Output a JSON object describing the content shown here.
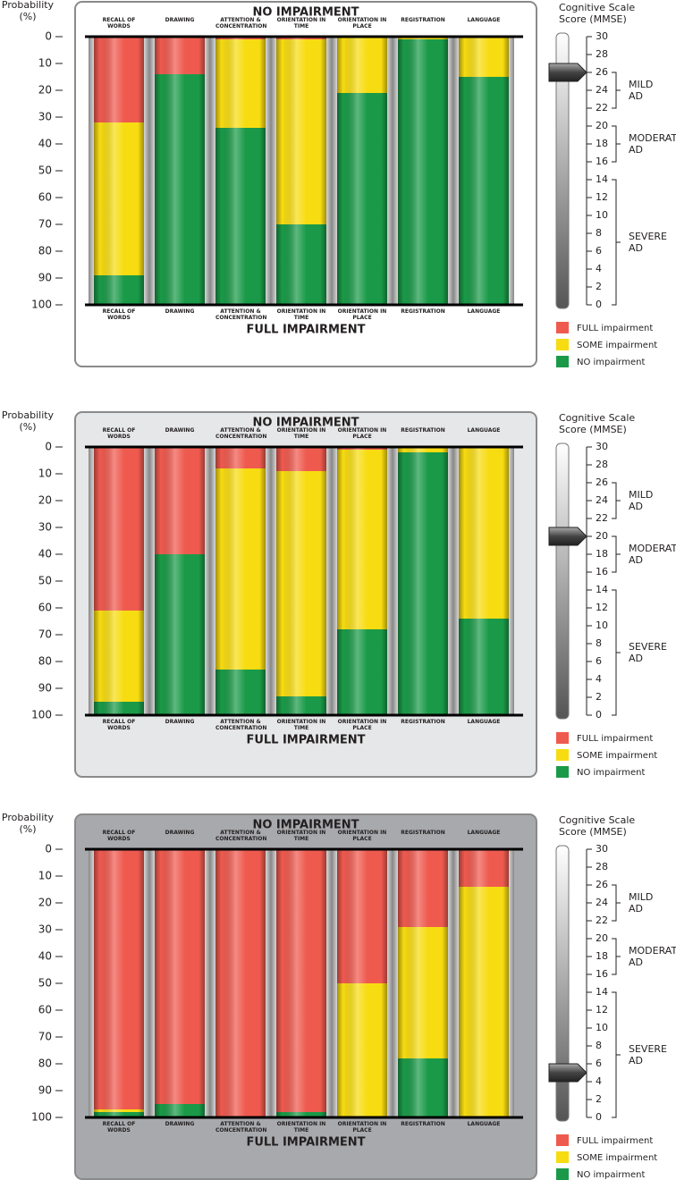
{
  "chart_data": [
    {
      "type": "bar",
      "stacked": true,
      "title": "NO IMPAIRMENT",
      "xlabel": "FULL IMPAIRMENT",
      "ylabel": "Probability (%)",
      "background": "#ffffff",
      "categories": [
        "RECALL OF WORDS",
        "DRAWING",
        "ATTENTION & CONCENTRATION",
        "ORIENTATION IN TIME",
        "ORIENTATION IN PLACE",
        "REGISTRATION",
        "LANGUAGE"
      ],
      "series": [
        {
          "name": "FULL impairment",
          "color": "#ef5a4f",
          "values": [
            32,
            14,
            1,
            1,
            0,
            0,
            0
          ]
        },
        {
          "name": "SOME impairment",
          "color": "#f7dc11",
          "values": [
            57,
            0,
            33,
            69,
            21,
            1,
            15
          ]
        },
        {
          "name": "NO impairment",
          "color": "#1a9a48",
          "values": [
            11,
            86,
            66,
            30,
            79,
            99,
            85
          ]
        }
      ],
      "ylim": [
        0,
        100
      ],
      "y_reversed": true,
      "yticks": [
        0,
        10,
        20,
        30,
        40,
        50,
        60,
        70,
        80,
        90,
        100
      ],
      "mmse": {
        "title": "Cognitive Scale Score (MMSE)",
        "score": 26,
        "lim": [
          0,
          30
        ],
        "ticks": [
          0,
          2,
          4,
          6,
          8,
          10,
          12,
          14,
          16,
          18,
          20,
          22,
          24,
          26,
          28,
          30
        ],
        "ranges": [
          {
            "label": "MILD AD",
            "from": 22,
            "to": 26
          },
          {
            "label": "MODERATE AD",
            "from": 16,
            "to": 20
          },
          {
            "label": "SEVERE AD",
            "from": 0,
            "to": 14
          }
        ]
      }
    },
    {
      "type": "bar",
      "stacked": true,
      "title": "NO IMPAIRMENT",
      "xlabel": "FULL IMPAIRMENT",
      "ylabel": "Probability (%)",
      "background": "#e6e7e8",
      "categories": [
        "RECALL OF WORDS",
        "DRAWING",
        "ATTENTION & CONCENTRATION",
        "ORIENTATION IN TIME",
        "ORIENTATION IN PLACE",
        "REGISTRATION",
        "LANGUAGE"
      ],
      "series": [
        {
          "name": "FULL impairment",
          "color": "#ef5a4f",
          "values": [
            61,
            40,
            8,
            9,
            1,
            0,
            0
          ]
        },
        {
          "name": "SOME impairment",
          "color": "#f7dc11",
          "values": [
            34,
            0,
            75,
            84,
            67,
            2,
            64
          ]
        },
        {
          "name": "NO impairment",
          "color": "#1a9a48",
          "values": [
            5,
            60,
            17,
            7,
            32,
            98,
            36
          ]
        }
      ],
      "ylim": [
        0,
        100
      ],
      "y_reversed": true,
      "yticks": [
        0,
        10,
        20,
        30,
        40,
        50,
        60,
        70,
        80,
        90,
        100
      ],
      "mmse": {
        "title": "Cognitive Scale Score (MMSE)",
        "score": 20,
        "lim": [
          0,
          30
        ],
        "ticks": [
          0,
          2,
          4,
          6,
          8,
          10,
          12,
          14,
          16,
          18,
          20,
          22,
          24,
          26,
          28,
          30
        ],
        "ranges": [
          {
            "label": "MILD AD",
            "from": 22,
            "to": 26
          },
          {
            "label": "MODERATE AD",
            "from": 16,
            "to": 20
          },
          {
            "label": "SEVERE AD",
            "from": 0,
            "to": 14
          }
        ]
      }
    },
    {
      "type": "bar",
      "stacked": true,
      "title": "NO IMPAIRMENT",
      "xlabel": "FULL IMPAIRMENT",
      "ylabel": "Probability (%)",
      "background": "#a7a9ac",
      "categories": [
        "RECALL OF WORDS",
        "DRAWING",
        "ATTENTION & CONCENTRATION",
        "ORIENTATION IN TIME",
        "ORIENTATION IN PLACE",
        "REGISTRATION",
        "LANGUAGE"
      ],
      "series": [
        {
          "name": "FULL impairment",
          "color": "#ef5a4f",
          "values": [
            97,
            95,
            100,
            98,
            50,
            29,
            14
          ]
        },
        {
          "name": "SOME impairment",
          "color": "#f7dc11",
          "values": [
            1,
            0,
            0,
            0,
            50,
            49,
            86
          ]
        },
        {
          "name": "NO impairment",
          "color": "#1a9a48",
          "values": [
            2,
            5,
            0,
            2,
            0,
            22,
            0
          ]
        }
      ],
      "ylim": [
        0,
        100
      ],
      "y_reversed": true,
      "yticks": [
        0,
        10,
        20,
        30,
        40,
        50,
        60,
        70,
        80,
        90,
        100
      ],
      "mmse": {
        "title": "Cognitive Scale Score (MMSE)",
        "score": 5,
        "lim": [
          0,
          30
        ],
        "ticks": [
          0,
          2,
          4,
          6,
          8,
          10,
          12,
          14,
          16,
          18,
          20,
          22,
          24,
          26,
          28,
          30
        ],
        "ranges": [
          {
            "label": "MILD AD",
            "from": 22,
            "to": 26
          },
          {
            "label": "MODERATE AD",
            "from": 16,
            "to": 20
          },
          {
            "label": "SEVERE AD",
            "from": 0,
            "to": 14
          }
        ]
      }
    }
  ]
}
